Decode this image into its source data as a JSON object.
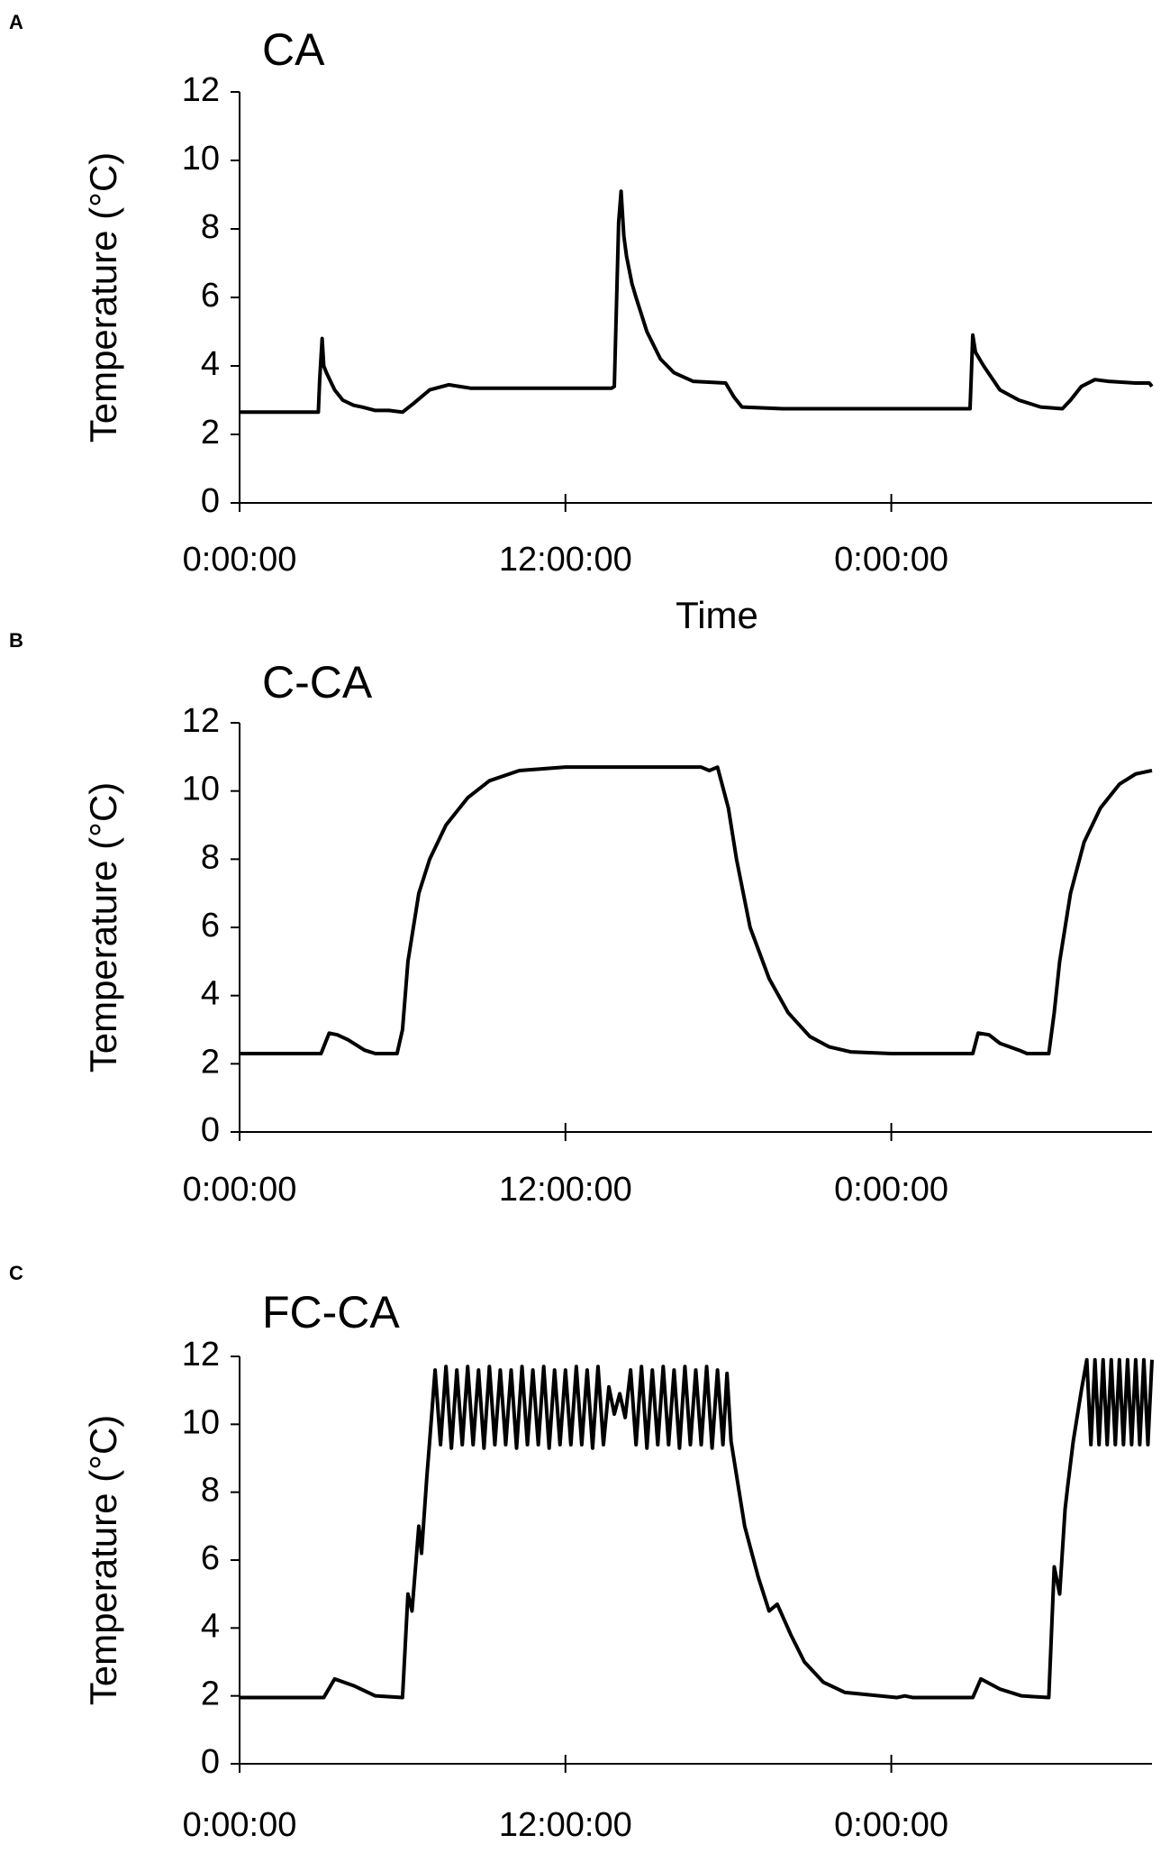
{
  "chart_data": [
    {
      "type": "line",
      "panel": "A",
      "title": "CA",
      "y_label": "Temperature (°C)",
      "x_label": "Time",
      "x": [
        0,
        2.9,
        2.95,
        3.04,
        3.1,
        3.2,
        3.5,
        3.8,
        4.2,
        4.5,
        5.0,
        5.5,
        6.0,
        6.4,
        7.0,
        7.7,
        8.5,
        10,
        12,
        13.7,
        13.8,
        13.96,
        14.05,
        14.15,
        14.25,
        14.3,
        14.45,
        14.6,
        15,
        15.5,
        16,
        16.7,
        17.9,
        18.2,
        18.5,
        20,
        24,
        26.9,
        26.95,
        27.0,
        27.1,
        27.4,
        28,
        28.7,
        29.5,
        30.3,
        30.6,
        31.0,
        31.5,
        32,
        33,
        33.5,
        33.6
      ],
      "series": [
        {
          "color": "#000000",
          "values": [
            2.65,
            2.65,
            3.6,
            4.8,
            4.0,
            3.8,
            3.3,
            3.0,
            2.85,
            2.8,
            2.7,
            2.7,
            2.65,
            2.9,
            3.3,
            3.45,
            3.35,
            3.35,
            3.35,
            3.35,
            3.4,
            8.2,
            9.1,
            7.8,
            7.2,
            7.0,
            6.4,
            6.0,
            5.0,
            4.2,
            3.8,
            3.55,
            3.5,
            3.1,
            2.8,
            2.75,
            2.75,
            2.75,
            3.8,
            4.9,
            4.4,
            4.0,
            3.3,
            3.0,
            2.8,
            2.75,
            3.0,
            3.4,
            3.6,
            3.55,
            3.5,
            3.5,
            3.4
          ]
        }
      ],
      "xlim": [
        0,
        33.6
      ],
      "xticks": [
        {
          "value": 0,
          "label": "0:00:00"
        },
        {
          "value": 12,
          "label": "12:00:00"
        },
        {
          "value": 24,
          "label": "0:00:00"
        }
      ],
      "ylim": [
        0,
        12
      ],
      "yticks": [
        0,
        2,
        4,
        6,
        8,
        10,
        12
      ],
      "grid": false
    },
    {
      "type": "line",
      "panel": "B",
      "title": "C-CA",
      "y_label": "Temperature (°C)",
      "x": [
        0,
        3.0,
        3.3,
        3.6,
        4.0,
        4.6,
        5.0,
        5.8,
        6.0,
        6.2,
        6.6,
        7.0,
        7.6,
        8.4,
        9.2,
        10.3,
        12,
        17.0,
        17.3,
        17.6,
        18.0,
        18.3,
        18.8,
        19.5,
        20.2,
        21,
        21.7,
        22.5,
        24,
        27.0,
        27.2,
        27.6,
        28,
        28.7,
        29.0,
        29.8,
        30.0,
        30.2,
        30.6,
        31.1,
        31.7,
        32.4,
        33,
        33.6
      ],
      "series": [
        {
          "color": "#000000",
          "values": [
            2.3,
            2.3,
            2.9,
            2.85,
            2.7,
            2.4,
            2.3,
            2.3,
            3.0,
            5.0,
            7.0,
            8.0,
            9.0,
            9.8,
            10.3,
            10.6,
            10.7,
            10.7,
            10.6,
            10.7,
            9.5,
            8.0,
            6.0,
            4.5,
            3.5,
            2.8,
            2.5,
            2.35,
            2.3,
            2.3,
            2.9,
            2.85,
            2.6,
            2.4,
            2.3,
            2.3,
            3.5,
            5.0,
            7.0,
            8.5,
            9.5,
            10.2,
            10.5,
            10.6
          ]
        }
      ],
      "xlim": [
        0,
        33.6
      ],
      "xticks": [
        {
          "value": 0,
          "label": "0:00:00"
        },
        {
          "value": 12,
          "label": "12:00:00"
        },
        {
          "value": 24,
          "label": "0:00:00"
        }
      ],
      "ylim": [
        0,
        12
      ],
      "yticks": [
        0,
        2,
        4,
        6,
        8,
        10,
        12
      ],
      "grid": false
    },
    {
      "type": "line",
      "panel": "C",
      "title": "FC-CA",
      "y_label": "Temperature (°C)",
      "x": [
        0,
        3.1,
        3.5,
        4.2,
        5.0,
        6.0,
        6.2,
        6.35,
        6.6,
        6.7,
        6.9,
        7.0,
        7.2,
        7.4,
        7.6,
        7.8,
        8.0,
        8.2,
        8.4,
        8.6,
        8.8,
        9.0,
        9.2,
        9.4,
        9.6,
        9.8,
        10.0,
        10.2,
        10.4,
        10.6,
        10.8,
        11.0,
        11.2,
        11.4,
        11.6,
        11.8,
        12.0,
        12.2,
        12.4,
        12.6,
        12.8,
        13.0,
        13.2,
        13.4,
        13.6,
        13.8,
        14.0,
        14.2,
        14.4,
        14.6,
        14.8,
        15.0,
        15.2,
        15.4,
        15.6,
        15.8,
        16.0,
        16.2,
        16.4,
        16.6,
        16.8,
        17.0,
        17.2,
        17.4,
        17.6,
        17.8,
        17.95,
        18.1,
        18.6,
        19.1,
        19.5,
        19.8,
        20.3,
        20.8,
        21.5,
        22.3,
        24.2,
        24.5,
        24.8,
        27.0,
        27.3,
        28,
        28.8,
        29.8,
        30.0,
        30.2,
        30.4,
        30.5,
        30.7,
        31.0,
        31.2,
        31.35,
        31.5,
        31.65,
        31.8,
        31.95,
        32.1,
        32.25,
        32.4,
        32.55,
        32.7,
        32.85,
        33.0,
        33.15,
        33.3,
        33.45,
        33.6
      ],
      "series": [
        {
          "color": "#000000",
          "values": [
            1.95,
            1.95,
            2.5,
            2.3,
            2.0,
            1.95,
            5.0,
            4.5,
            7.0,
            6.2,
            8.5,
            9.5,
            11.6,
            9.4,
            11.7,
            9.3,
            11.6,
            9.4,
            11.7,
            9.4,
            11.6,
            9.3,
            11.7,
            9.4,
            11.6,
            9.4,
            11.6,
            9.3,
            11.7,
            9.4,
            11.6,
            9.4,
            11.7,
            9.3,
            11.6,
            9.4,
            11.6,
            9.4,
            11.7,
            9.4,
            11.6,
            9.3,
            11.7,
            9.4,
            11.1,
            10.3,
            10.9,
            10.2,
            11.6,
            9.4,
            11.7,
            9.3,
            11.6,
            9.4,
            11.7,
            9.4,
            11.6,
            9.3,
            11.7,
            9.4,
            11.6,
            9.4,
            11.7,
            9.3,
            11.6,
            9.4,
            11.5,
            9.5,
            7.0,
            5.5,
            4.5,
            4.7,
            3.8,
            3.0,
            2.4,
            2.1,
            1.95,
            2.0,
            1.95,
            1.95,
            2.5,
            2.2,
            2.0,
            1.95,
            5.8,
            5.0,
            7.5,
            8.2,
            9.5,
            11.0,
            11.9,
            9.4,
            11.9,
            9.4,
            11.9,
            9.4,
            11.9,
            9.4,
            11.9,
            9.4,
            11.9,
            9.4,
            11.9,
            9.4,
            11.9,
            9.4,
            11.9
          ]
        }
      ],
      "xlim": [
        0,
        33.6
      ],
      "xticks": [
        {
          "value": 0,
          "label": "0:00:00"
        },
        {
          "value": 12,
          "label": "12:00:00"
        },
        {
          "value": 24,
          "label": "0:00:00"
        }
      ],
      "ylim": [
        0,
        12
      ],
      "yticks": [
        0,
        2,
        4,
        6,
        8,
        10,
        12
      ],
      "grid": false
    }
  ]
}
